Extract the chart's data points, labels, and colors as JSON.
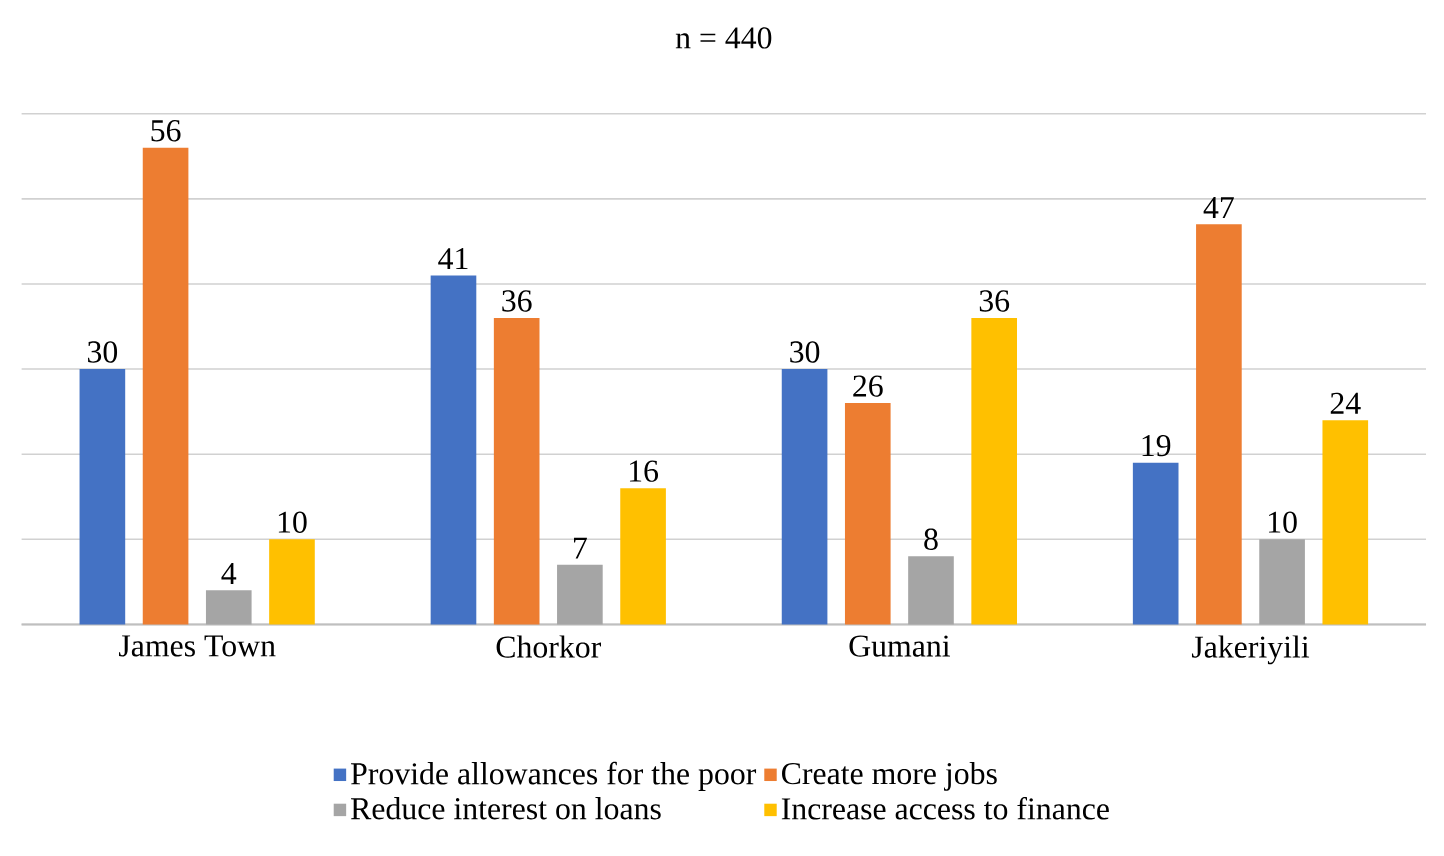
{
  "chart_data": {
    "type": "bar",
    "title": "n = 440",
    "categories": [
      "James Town",
      "Chorkor",
      "Gumani",
      "Jakeriyili"
    ],
    "series": [
      {
        "name": "Provide allowances for the poor",
        "color": "#4472c4",
        "values": [
          30,
          41,
          30,
          19
        ]
      },
      {
        "name": "Create more jobs",
        "color": "#ed7d31",
        "values": [
          56,
          36,
          26,
          47
        ]
      },
      {
        "name": "Reduce interest on loans",
        "color": "#a5a5a5",
        "values": [
          4,
          7,
          8,
          10
        ]
      },
      {
        "name": "Increase access to finance",
        "color": "#ffc000",
        "values": [
          10,
          16,
          36,
          24
        ]
      }
    ],
    "ylim": [
      0,
      60
    ],
    "yticks": [
      {
        "value": 0,
        "label": null
      },
      {
        "value": 10,
        "label": null
      },
      {
        "value": 20,
        "label": null
      },
      {
        "value": 30,
        "label": null
      },
      {
        "value": 40,
        "label": null
      },
      {
        "value": 50,
        "label": null
      },
      {
        "value": 60,
        "label": null
      }
    ],
    "tick_labels": "x",
    "grid": "y",
    "legend": "bottom",
    "data_labels": true
  }
}
